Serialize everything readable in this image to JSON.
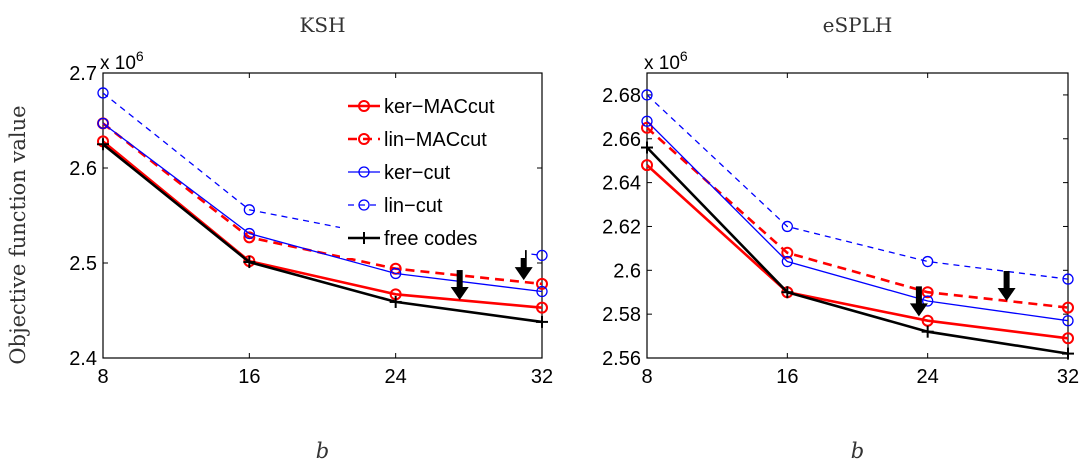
{
  "ylabel": "Objective function value",
  "chart_data": [
    {
      "type": "line",
      "title": "KSH",
      "xlabel": "b",
      "multiplier": "x 10",
      "multiplier_exp": "6",
      "x": [
        8,
        16,
        24,
        32
      ],
      "xticks": [
        "8",
        "16",
        "24",
        "32"
      ],
      "xlim": [
        8,
        32
      ],
      "yticks": [
        "2.4",
        "2.5",
        "2.6",
        "2.7"
      ],
      "ylim": [
        2.4,
        2.7
      ],
      "legend": "top-right",
      "series": [
        {
          "name": "ker−MACcut",
          "color": "#ff0000",
          "dash": "solid",
          "marker": "circle",
          "values": [
            2.628,
            2.502,
            2.467,
            2.453
          ]
        },
        {
          "name": "lin−MACcut",
          "color": "#ff0000",
          "dash": "dashed",
          "marker": "circle",
          "values": [
            2.647,
            2.527,
            2.494,
            2.478
          ]
        },
        {
          "name": "ker−cut",
          "color": "#0000ff",
          "dash": "solid",
          "marker": "circle",
          "values": [
            2.647,
            2.531,
            2.489,
            2.47
          ]
        },
        {
          "name": "lin−cut",
          "color": "#0000ff",
          "dash": "dashed",
          "marker": "circle",
          "values": [
            2.679,
            2.556,
            2.526,
            2.508
          ]
        },
        {
          "name": "free codes",
          "color": "#000000",
          "dash": "solid",
          "marker": "plus",
          "values": [
            2.625,
            2.501,
            2.459,
            2.438
          ]
        }
      ],
      "arrows": [
        {
          "x": 27.5,
          "y": 2.461
        },
        {
          "x": 31,
          "y": 2.482
        }
      ]
    },
    {
      "type": "line",
      "title": "eSPLH",
      "xlabel": "b",
      "multiplier": "x 10",
      "multiplier_exp": "6",
      "x": [
        8,
        16,
        24,
        32
      ],
      "xticks": [
        "8",
        "16",
        "24",
        "32"
      ],
      "xlim": [
        8,
        32
      ],
      "yticks": [
        "2.56",
        "2.58",
        "2.6",
        "2.62",
        "2.64",
        "2.66",
        "2.68"
      ],
      "ylim": [
        2.56,
        2.69
      ],
      "series": [
        {
          "name": "ker−MACcut",
          "color": "#ff0000",
          "dash": "solid",
          "marker": "circle",
          "values": [
            2.648,
            2.59,
            2.577,
            2.569
          ]
        },
        {
          "name": "lin−MACcut",
          "color": "#ff0000",
          "dash": "dashed",
          "marker": "circle",
          "values": [
            2.665,
            2.608,
            2.59,
            2.583
          ]
        },
        {
          "name": "ker−cut",
          "color": "#0000ff",
          "dash": "solid",
          "marker": "circle",
          "values": [
            2.668,
            2.604,
            2.586,
            2.577
          ]
        },
        {
          "name": "lin−cut",
          "color": "#0000ff",
          "dash": "dashed",
          "marker": "circle",
          "values": [
            2.68,
            2.62,
            2.604,
            2.596
          ]
        },
        {
          "name": "free codes",
          "color": "#000000",
          "dash": "solid",
          "marker": "plus",
          "values": [
            2.656,
            2.59,
            2.572,
            2.562
          ]
        }
      ],
      "arrows": [
        {
          "x": 23.5,
          "y": 2.579
        },
        {
          "x": 28.5,
          "y": 2.586
        }
      ]
    }
  ]
}
